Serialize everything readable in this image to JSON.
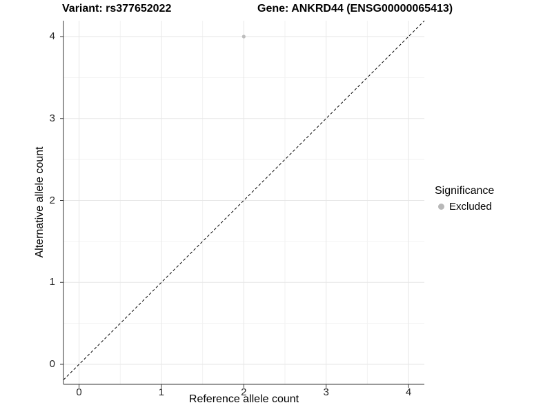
{
  "header": {
    "variant_title": "Variant: rs377652022",
    "gene_title": "Gene: ANKRD44 (ENSG00000065413)"
  },
  "chart_data": {
    "type": "scatter",
    "title": "Variant: rs377652022   Gene: ANKRD44 (ENSG00000065413)",
    "xlabel": "Reference allele count",
    "ylabel": "Alternative allele count",
    "xlim": [
      -0.2,
      4.2
    ],
    "ylim": [
      -0.2,
      4.2
    ],
    "x_ticks": [
      0,
      1,
      2,
      3,
      4
    ],
    "y_ticks": [
      0,
      1,
      2,
      3,
      4
    ],
    "grid": "major and minor gridlines on white background",
    "reference_line": "dashed identity line y = x",
    "series": [
      {
        "name": "Excluded",
        "color": "#bdbdbd",
        "points": [
          {
            "x": 2,
            "y": 4
          }
        ]
      }
    ],
    "legend": {
      "title": "Significance",
      "position": "right",
      "entries": [
        {
          "label": "Excluded",
          "color": "#bdbdbd"
        }
      ]
    }
  },
  "colors": {
    "background": "#ffffff",
    "major_grid": "#e6e6e6",
    "minor_grid": "#f2f2f2",
    "axis_line": "#333333",
    "tick_text": "#262626",
    "identity_line": "#000000",
    "point": "#bdbdbd"
  }
}
